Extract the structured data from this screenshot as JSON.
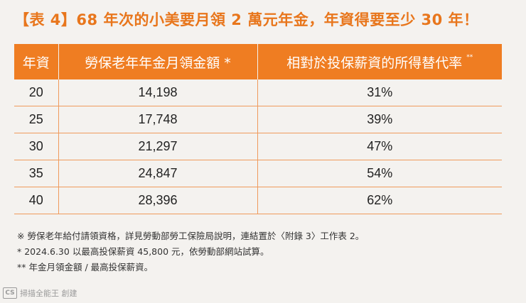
{
  "title": "【表 4】68 年次的小美要月領 2 萬元年金，年資得要至少 30 年！",
  "table": {
    "headers": [
      "年資",
      "勞保老年年金月領金額 *",
      "相對於投保薪資的所得替代率"
    ],
    "header_sup": "**",
    "rows": [
      [
        "20",
        "14,198",
        "31%"
      ],
      [
        "25",
        "17,748",
        "39%"
      ],
      [
        "30",
        "21,297",
        "47%"
      ],
      [
        "35",
        "24,847",
        "54%"
      ],
      [
        "40",
        "28,396",
        "62%"
      ]
    ]
  },
  "notes": [
    "※ 勞保老年給付請領資格，詳見勞動部勞工保險局說明，連結置於〈附錄 3〉工作表 2。",
    "* 2024.6.30 以最高投保薪資 45,800 元，依勞動部網站試算。",
    "** 年金月領金額 / 最高投保薪資。"
  ],
  "watermark": {
    "logo": "CS",
    "text": "掃描全能王 創建"
  },
  "colors": {
    "accent": "#ef7d22",
    "title": "#e8761c",
    "rule": "#ef9a5c"
  }
}
